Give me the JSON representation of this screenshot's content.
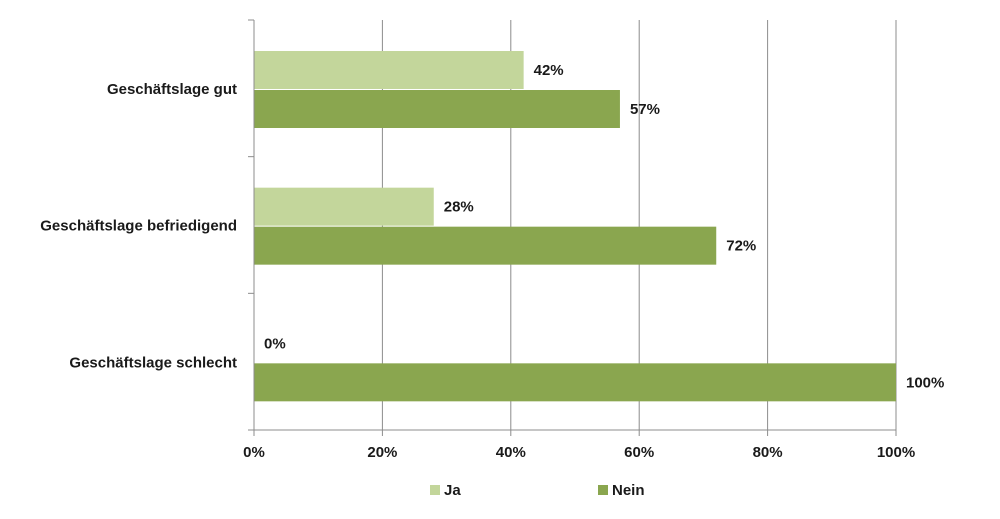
{
  "chart_data": {
    "type": "bar",
    "orientation": "horizontal",
    "categories": [
      "Geschäftslage gut",
      "Geschäftslage befriedigend",
      "Geschäftslage schlecht"
    ],
    "series": [
      {
        "name": "Ja",
        "values": [
          42,
          28,
          0
        ],
        "labels": [
          "42%",
          "28%",
          "0%"
        ],
        "color": "#c3d69b"
      },
      {
        "name": "Nein",
        "values": [
          57,
          72,
          100
        ],
        "labels": [
          "57%",
          "72%",
          "100%"
        ],
        "color": "#8aa64f"
      }
    ],
    "xlim": [
      0,
      100
    ],
    "x_ticks": [
      "0%",
      "20%",
      "40%",
      "60%",
      "80%",
      "100%"
    ],
    "grid": true,
    "legend_position": "bottom"
  }
}
